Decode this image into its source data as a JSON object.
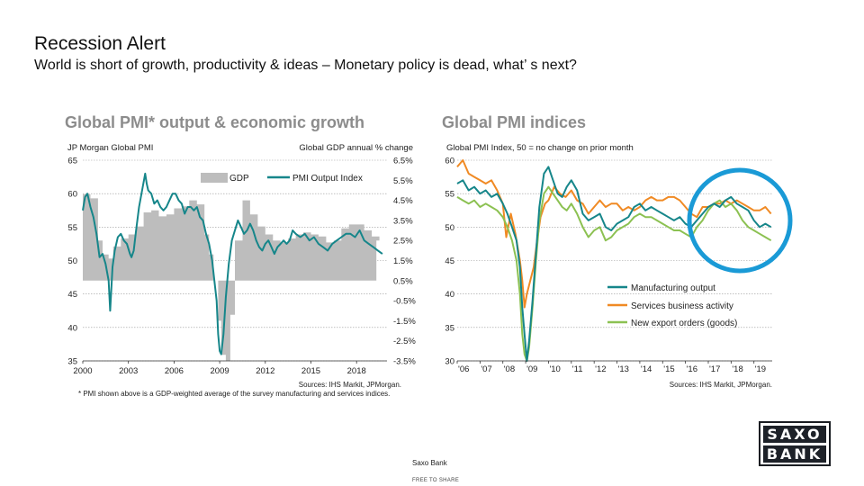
{
  "slide": {
    "title": "Recession Alert",
    "subtitle": "World is short of growth, productivity & ideas – Monetary policy is dead, what’ s next?"
  },
  "footer": {
    "company": "Saxo Bank",
    "share": "FREE TO SHARE"
  },
  "logo": {
    "line1": "SAXO",
    "line2": "BANK"
  },
  "colors": {
    "teal": "#16868a",
    "orange": "#f08a24",
    "green": "#8cc152",
    "gdp": "#bdbdbd",
    "ring": "#1a9ad6",
    "title_gray": "#8c8c8c"
  },
  "chart_data": [
    {
      "type": "line",
      "title": "Global PMI* output & economic growth",
      "left_axis_label": "JP Morgan Global PMI",
      "right_axis_label": "Global GDP annual % change",
      "ylim_left": [
        35,
        65
      ],
      "ylim_right": [
        -3.5,
        6.5
      ],
      "yticks_left": [
        "65",
        "60",
        "55",
        "50",
        "45",
        "40",
        "35"
      ],
      "yticks_right": [
        "6.5%",
        "5.5%",
        "4.5%",
        "3.5%",
        "2.5%",
        "1.5%",
        "0.5%",
        "-0.5%",
        "-1.5%",
        "-2.5%",
        "-3.5%"
      ],
      "xticks": [
        "2000",
        "2003",
        "2006",
        "2009",
        "2012",
        "2015",
        "2018"
      ],
      "xlim": [
        2000,
        2020
      ],
      "legend": [
        "GDP",
        "PMI Output Index"
      ],
      "source": "Sources: IHS Markit, JPMorgan.",
      "footnote": "* PMI shown above is a GDP-weighted average of the survey manufacturing and services indices.",
      "series": [
        {
          "name": "PMI Output Index",
          "x": [
            2000,
            2000.15,
            2000.3,
            2000.5,
            2000.7,
            2000.9,
            2001.1,
            2001.3,
            2001.5,
            2001.7,
            2001.8,
            2001.95,
            2002.1,
            2002.3,
            2002.5,
            2002.7,
            2002.9,
            2003.1,
            2003.2,
            2003.35,
            2003.5,
            2003.7,
            2003.9,
            2004.1,
            2004.2,
            2004.3,
            2004.5,
            2004.7,
            2004.9,
            2005.1,
            2005.3,
            2005.5,
            2005.7,
            2005.9,
            2006.1,
            2006.3,
            2006.5,
            2006.7,
            2006.9,
            2007.1,
            2007.3,
            2007.5,
            2007.7,
            2007.9,
            2008.1,
            2008.3,
            2008.5,
            2008.65,
            2008.8,
            2008.9,
            2009.0,
            2009.1,
            2009.25,
            2009.4,
            2009.6,
            2009.8,
            2010.0,
            2010.2,
            2010.4,
            2010.6,
            2010.8,
            2011.0,
            2011.2,
            2011.4,
            2011.6,
            2011.8,
            2012.0,
            2012.2,
            2012.4,
            2012.6,
            2012.8,
            2013.0,
            2013.2,
            2013.4,
            2013.6,
            2013.8,
            2014.0,
            2014.3,
            2014.6,
            2014.9,
            2015.2,
            2015.5,
            2015.8,
            2016.1,
            2016.4,
            2016.7,
            2017.0,
            2017.3,
            2017.6,
            2017.9,
            2018.2,
            2018.5,
            2018.8,
            2019.1,
            2019.4,
            2019.7
          ],
          "values": [
            57.5,
            59.5,
            60,
            58,
            56.5,
            54,
            50.5,
            51,
            49.5,
            47,
            42.5,
            49,
            51.5,
            53.5,
            54,
            53,
            52.5,
            51,
            50.5,
            51.5,
            54.5,
            58,
            60.5,
            63,
            61.5,
            60.5,
            60,
            58.5,
            59,
            58,
            57.5,
            58,
            59,
            60,
            60,
            59,
            58.5,
            57,
            58,
            58,
            57.5,
            58,
            56.5,
            56,
            54,
            52.5,
            50,
            47,
            44,
            39,
            36.5,
            36,
            39,
            44.5,
            49.5,
            53,
            54.5,
            56,
            55,
            54,
            54.5,
            55.5,
            54.5,
            53,
            52,
            51.5,
            52.5,
            53,
            52,
            51,
            52,
            52.5,
            53,
            52.5,
            53,
            54.5,
            54,
            53.5,
            54,
            53,
            53.5,
            52.5,
            52,
            51.5,
            52.5,
            53,
            53.5,
            54,
            54,
            53.5,
            54.5,
            53,
            52.5,
            52,
            51.5,
            51
          ]
        },
        {
          "name": "GDP",
          "x": [
            2000,
            2000.5,
            2001,
            2001.3,
            2001.7,
            2002,
            2002.5,
            2003,
            2003.5,
            2004,
            2004.5,
            2005,
            2005.5,
            2006,
            2006.5,
            2007,
            2007.5,
            2008,
            2008.3,
            2008.6,
            2008.9,
            2009.1,
            2009.4,
            2009.7,
            2010,
            2010.5,
            2011,
            2011.5,
            2012,
            2012.5,
            2013,
            2013.5,
            2014,
            2014.5,
            2015,
            2015.5,
            2016,
            2016.5,
            2017,
            2017.5,
            2018,
            2018.5,
            2019,
            2019.5,
            2020
          ],
          "values": [
            4.8,
            4.6,
            2.5,
            1.8,
            1.6,
            2.2,
            2.6,
            2.8,
            3.2,
            3.9,
            4.0,
            3.7,
            3.8,
            4.1,
            4.2,
            4.5,
            4.3,
            2.8,
            1.8,
            0.5,
            -1.5,
            -3.2,
            -3.5,
            -1.2,
            2.5,
            4.5,
            3.8,
            3.2,
            2.8,
            2.5,
            2.4,
            2.6,
            2.8,
            2.9,
            2.8,
            2.7,
            2.4,
            2.5,
            3.1,
            3.3,
            3.3,
            3.0,
            2.7,
            2.5,
            2.5
          ]
        }
      ]
    },
    {
      "type": "line",
      "title": "Global PMI indices",
      "axis_label": "Global PMI Index, 50 = no change on prior month",
      "ylim": [
        30,
        60
      ],
      "yticks": [
        "60",
        "55",
        "50",
        "45",
        "40",
        "35",
        "30"
      ],
      "xticks": [
        "'06",
        "'07",
        "'08",
        "'09",
        "'10",
        "'11",
        "'12",
        "'13",
        "'14",
        "'15",
        "'16",
        "'17",
        "'18",
        "'19"
      ],
      "xlim": [
        2006,
        2019.8
      ],
      "legend": [
        "Manufacturing output",
        "Services business activity",
        "New export orders (goods)"
      ],
      "source": "Sources: IHS Markit, JPMorgan.",
      "series": [
        {
          "name": "Manufacturing output",
          "x": [
            2006.0,
            2006.25,
            2006.5,
            2006.75,
            2007.0,
            2007.25,
            2007.5,
            2007.75,
            2008.0,
            2008.2,
            2008.4,
            2008.6,
            2008.75,
            2008.85,
            2008.95,
            2009.05,
            2009.15,
            2009.3,
            2009.45,
            2009.6,
            2009.8,
            2010.0,
            2010.2,
            2010.4,
            2010.6,
            2010.8,
            2011.0,
            2011.25,
            2011.5,
            2011.75,
            2012.0,
            2012.25,
            2012.5,
            2012.75,
            2013.0,
            2013.25,
            2013.5,
            2013.75,
            2014.0,
            2014.25,
            2014.5,
            2014.75,
            2015.0,
            2015.25,
            2015.5,
            2015.75,
            2016.0,
            2016.25,
            2016.5,
            2016.75,
            2017.0,
            2017.25,
            2017.5,
            2017.75,
            2018.0,
            2018.25,
            2018.5,
            2018.75,
            2019.0,
            2019.25,
            2019.5,
            2019.75
          ],
          "values": [
            56.5,
            57,
            55.5,
            56,
            55,
            55.5,
            54.5,
            55,
            53.5,
            52,
            50,
            48,
            44,
            38,
            34,
            30,
            33,
            39,
            46,
            53,
            58,
            59,
            57,
            55,
            54.5,
            56,
            57,
            55.5,
            52,
            51,
            51.5,
            52,
            50,
            49.5,
            50.5,
            51,
            51.5,
            53,
            53.5,
            52.5,
            53,
            52.5,
            52,
            51.5,
            51,
            51.5,
            50.5,
            50,
            51,
            52,
            53,
            53.5,
            53,
            54,
            54.5,
            53.5,
            53,
            52.5,
            51,
            50,
            50.5,
            50
          ]
        },
        {
          "name": "Services business activity",
          "x": [
            2006.0,
            2006.25,
            2006.5,
            2006.75,
            2007.0,
            2007.25,
            2007.5,
            2007.75,
            2008.0,
            2008.15,
            2008.35,
            2008.55,
            2008.75,
            2008.85,
            2008.95,
            2009.05,
            2009.2,
            2009.35,
            2009.5,
            2009.65,
            2009.85,
            2010.0,
            2010.25,
            2010.5,
            2010.75,
            2011.0,
            2011.25,
            2011.5,
            2011.75,
            2012.0,
            2012.25,
            2012.5,
            2012.75,
            2013.0,
            2013.25,
            2013.5,
            2013.75,
            2014.0,
            2014.25,
            2014.5,
            2014.75,
            2015.0,
            2015.25,
            2015.5,
            2015.75,
            2016.0,
            2016.25,
            2016.5,
            2016.75,
            2017.0,
            2017.25,
            2017.5,
            2017.75,
            2018.0,
            2018.25,
            2018.5,
            2018.75,
            2019.0,
            2019.25,
            2019.5,
            2019.75
          ],
          "values": [
            59,
            60,
            58,
            57.5,
            57,
            56.5,
            57,
            55.5,
            53.5,
            48.5,
            52,
            49,
            45,
            42,
            38,
            40,
            42,
            44,
            48,
            51.5,
            53.5,
            54,
            56,
            55,
            54.5,
            55.5,
            54,
            53.5,
            52,
            53,
            54,
            53,
            53.5,
            53.5,
            52.5,
            53,
            52.5,
            53,
            54,
            54.5,
            54,
            54,
            54.5,
            54.5,
            54,
            53,
            52,
            51.5,
            53,
            53,
            53.5,
            53.5,
            54,
            53.5,
            54,
            53.5,
            53,
            52.5,
            52.5,
            53,
            52
          ]
        },
        {
          "name": "New export orders (goods)",
          "x": [
            2006.0,
            2006.25,
            2006.5,
            2006.75,
            2007.0,
            2007.25,
            2007.5,
            2007.75,
            2008.0,
            2008.2,
            2008.4,
            2008.6,
            2008.75,
            2008.85,
            2008.95,
            2009.05,
            2009.15,
            2009.3,
            2009.45,
            2009.6,
            2009.8,
            2010.0,
            2010.2,
            2010.4,
            2010.6,
            2010.8,
            2011.0,
            2011.25,
            2011.5,
            2011.75,
            2012.0,
            2012.25,
            2012.5,
            2012.75,
            2013.0,
            2013.25,
            2013.5,
            2013.75,
            2014.0,
            2014.25,
            2014.5,
            2014.75,
            2015.0,
            2015.25,
            2015.5,
            2015.75,
            2016.0,
            2016.25,
            2016.5,
            2016.75,
            2017.0,
            2017.25,
            2017.5,
            2017.75,
            2018.0,
            2018.25,
            2018.5,
            2018.75,
            2019.0,
            2019.25,
            2019.5,
            2019.75
          ],
          "values": [
            54.5,
            54,
            53.5,
            54,
            53,
            53.5,
            53,
            52.5,
            51.5,
            50,
            48,
            45,
            40,
            34,
            31,
            30,
            32,
            38,
            45,
            51,
            55,
            56,
            55,
            54,
            53,
            52.5,
            53.5,
            52,
            50,
            48.5,
            49.5,
            50,
            48,
            48.5,
            49.5,
            50,
            50.5,
            51.5,
            52,
            51.5,
            51.5,
            51,
            50.5,
            50,
            49.5,
            49.5,
            49,
            48.5,
            50,
            51,
            52.5,
            53.5,
            54,
            53,
            53.5,
            52.5,
            51,
            50,
            49.5,
            49,
            48.5,
            48
          ]
        }
      ]
    }
  ]
}
